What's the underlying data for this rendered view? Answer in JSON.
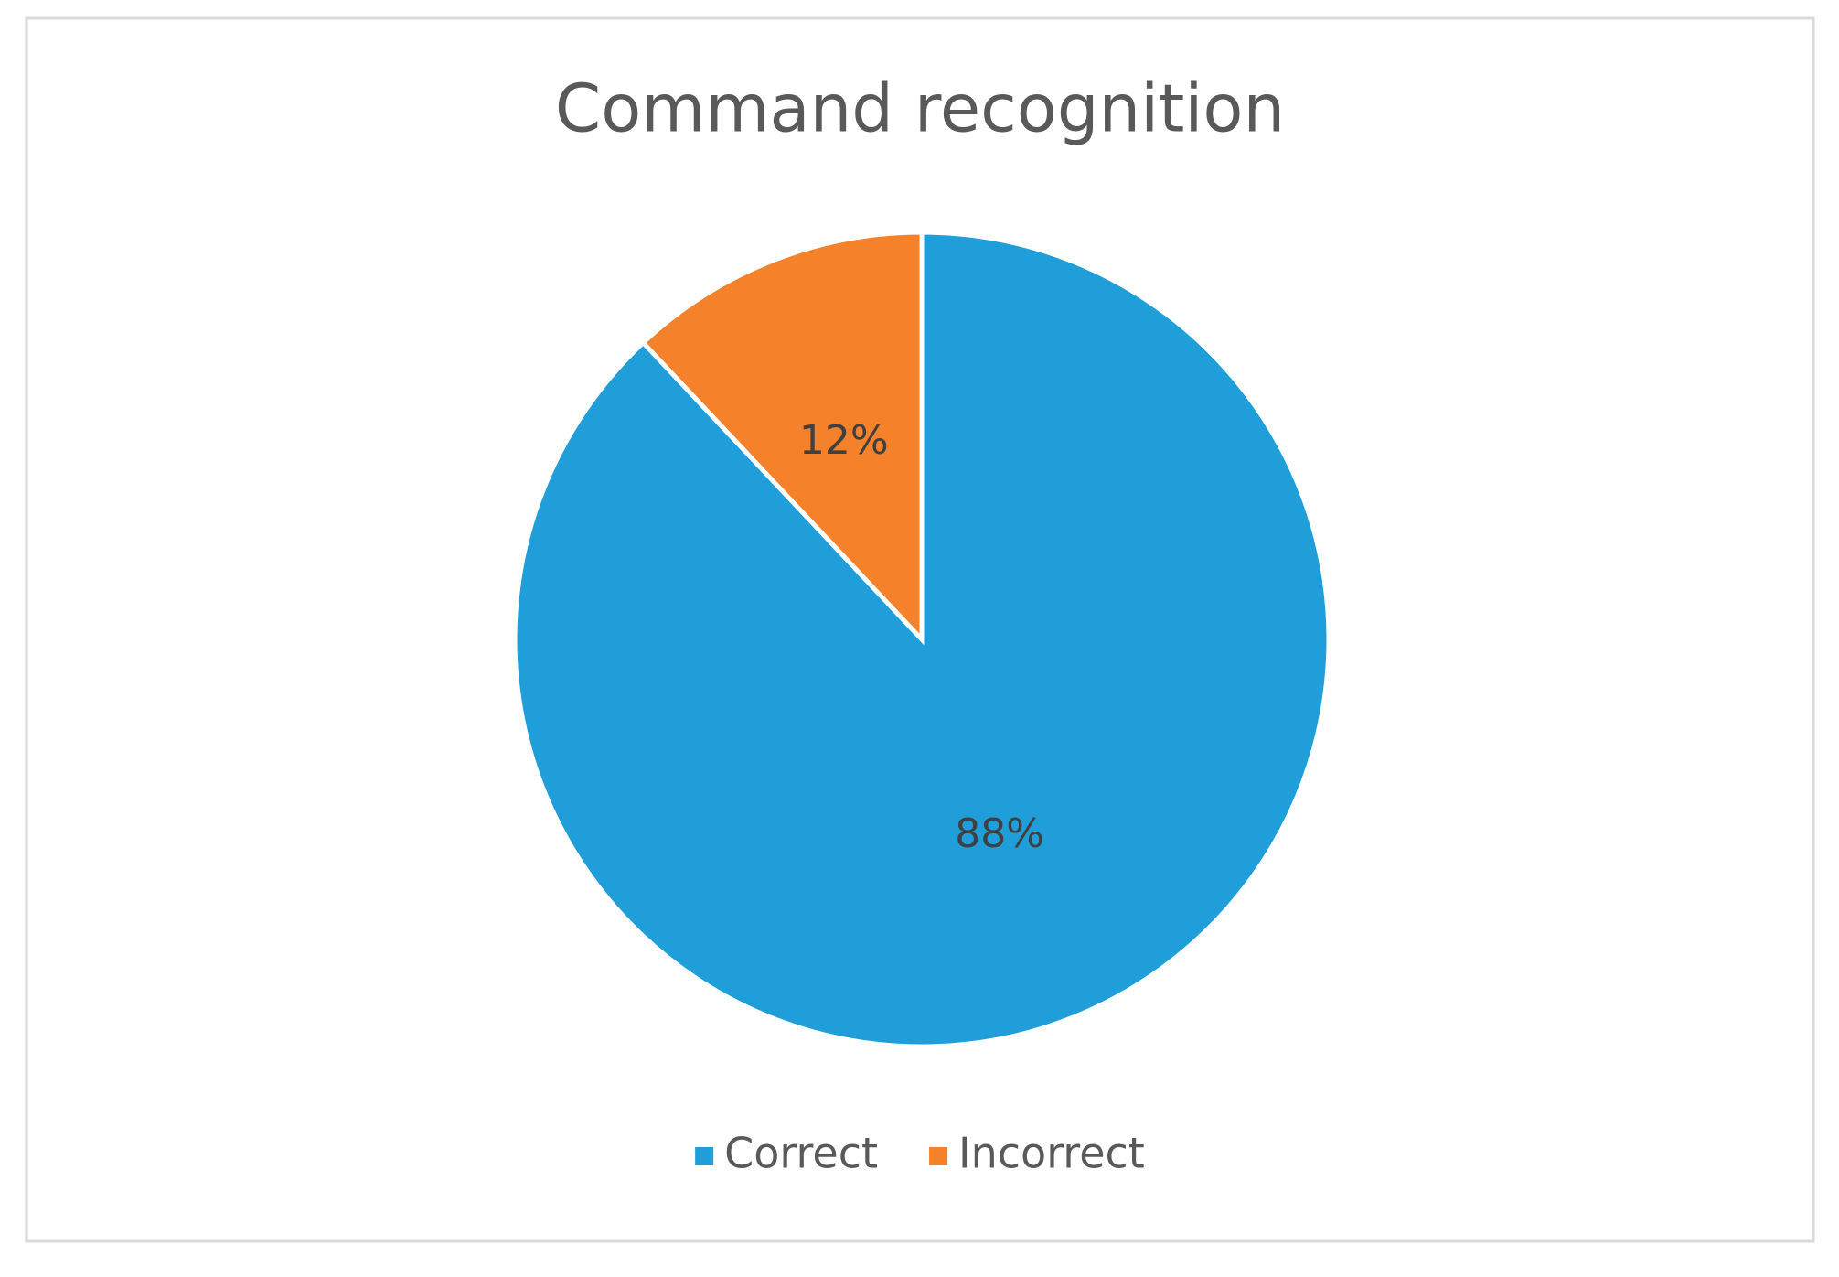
{
  "chart_data": {
    "type": "pie",
    "title": "Command recognition",
    "categories": [
      "Correct",
      "Incorrect"
    ],
    "values": [
      88,
      12
    ],
    "value_labels": [
      "88%",
      "12%"
    ],
    "colors": [
      "#1f9ed9",
      "#f5822a"
    ],
    "legend": "bottom"
  }
}
